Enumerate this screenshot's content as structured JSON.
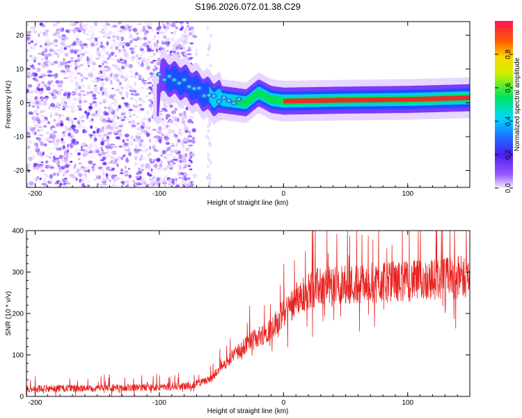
{
  "title": "S196.2026.072.01.38.C29",
  "chart_data": [
    {
      "type": "heatmap",
      "xlabel": "Height of straight line (km)",
      "ylabel": "Frequency (Hz)",
      "xlim": [
        -207,
        150
      ],
      "ylim": [
        -25,
        24
      ],
      "xticks": [
        -200,
        -100,
        0,
        100
      ],
      "yticks": [
        -20,
        -10,
        0,
        10,
        20
      ],
      "colorbar": {
        "label": "Normalized spectral amplitude",
        "range": [
          0,
          1
        ],
        "ticks": [
          0.0,
          0.2,
          0.4,
          0.6,
          0.8
        ]
      },
      "ridge": [
        {
          "x": -100,
          "y": 8
        },
        {
          "x": -90,
          "y": 7
        },
        {
          "x": -80,
          "y": 6
        },
        {
          "x": -70,
          "y": 4
        },
        {
          "x": -60,
          "y": 2
        },
        {
          "x": -50,
          "y": 1
        },
        {
          "x": -40,
          "y": 0.5
        },
        {
          "x": -30,
          "y": 0
        },
        {
          "x": -20,
          "y": 3
        },
        {
          "x": -10,
          "y": 1
        },
        {
          "x": 0,
          "y": 0.5
        },
        {
          "x": 50,
          "y": 0.8
        },
        {
          "x": 100,
          "y": 1
        },
        {
          "x": 150,
          "y": 1.5
        }
      ],
      "noise_region": [
        -207,
        -60
      ]
    },
    {
      "type": "line",
      "xlabel": "Height of straight line (km)",
      "ylabel": "SNR (10 * v/v)",
      "xlim": [
        -207,
        150
      ],
      "ylim": [
        0,
        400
      ],
      "xticks": [
        -200,
        -100,
        0,
        100
      ],
      "yticks": [
        0,
        100,
        200,
        300,
        400
      ],
      "color": "#e8231f",
      "trend": [
        {
          "x": -207,
          "y": 18
        },
        {
          "x": -150,
          "y": 20
        },
        {
          "x": -100,
          "y": 22
        },
        {
          "x": -75,
          "y": 25
        },
        {
          "x": -60,
          "y": 40
        },
        {
          "x": -50,
          "y": 70
        },
        {
          "x": -40,
          "y": 100
        },
        {
          "x": -30,
          "y": 125
        },
        {
          "x": -20,
          "y": 145
        },
        {
          "x": -10,
          "y": 165
        },
        {
          "x": 0,
          "y": 200
        },
        {
          "x": 10,
          "y": 235
        },
        {
          "x": 20,
          "y": 255
        },
        {
          "x": 30,
          "y": 265
        },
        {
          "x": 50,
          "y": 270
        },
        {
          "x": 80,
          "y": 275
        },
        {
          "x": 110,
          "y": 280
        },
        {
          "x": 150,
          "y": 290
        }
      ]
    }
  ]
}
